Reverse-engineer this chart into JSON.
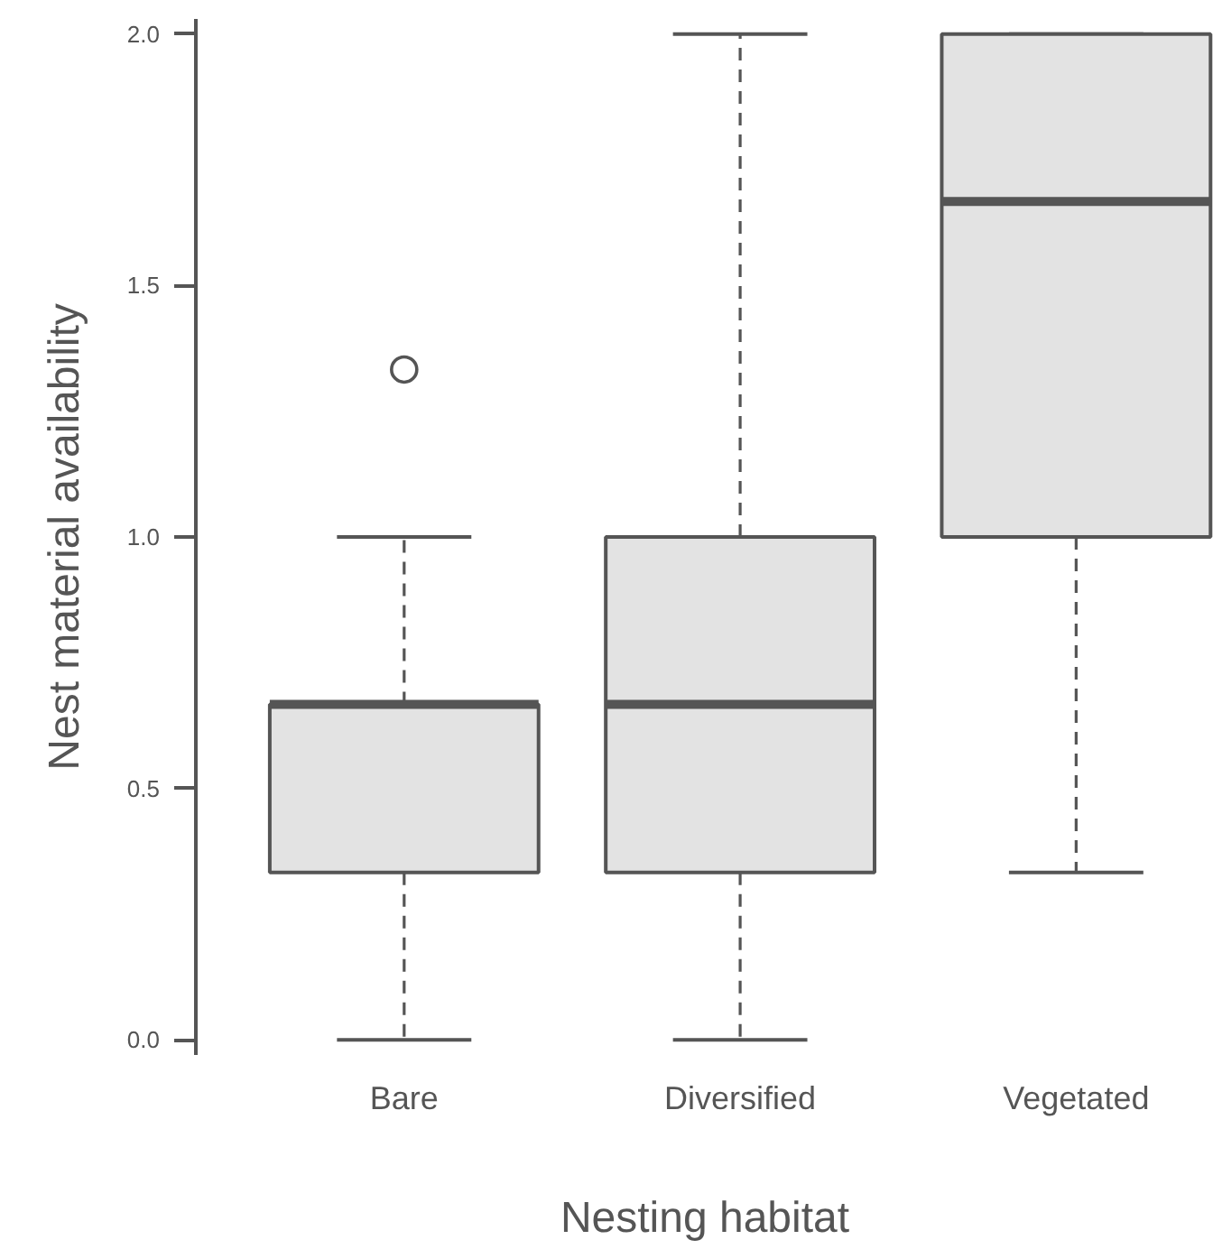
{
  "chart_data": {
    "type": "box",
    "xlabel": "Nesting habitat",
    "ylabel": "Nest material availability",
    "categories": [
      "Bare",
      "Diversified",
      "Vegetated"
    ],
    "boxes": [
      {
        "low": 0,
        "q1": 0.333,
        "median": 0.667,
        "q3": 0.667,
        "high": 1,
        "outliers": [
          1.333
        ]
      },
      {
        "low": 0,
        "q1": 0.333,
        "median": 0.667,
        "q3": 1,
        "high": 2
      },
      {
        "low": 0.333,
        "q1": 1,
        "median": 1.667,
        "q3": 2,
        "high": 2
      }
    ],
    "color": "#e3e3e3",
    "ylim": [
      -0.03,
      2.03
    ],
    "yticks": [
      {
        "value": 0,
        "label": "0.0"
      },
      0.5,
      {
        "value": 1,
        "label": "1.0"
      },
      1.5,
      {
        "value": 2,
        "label": "2.0"
      }
    ],
    "grid": false
  }
}
